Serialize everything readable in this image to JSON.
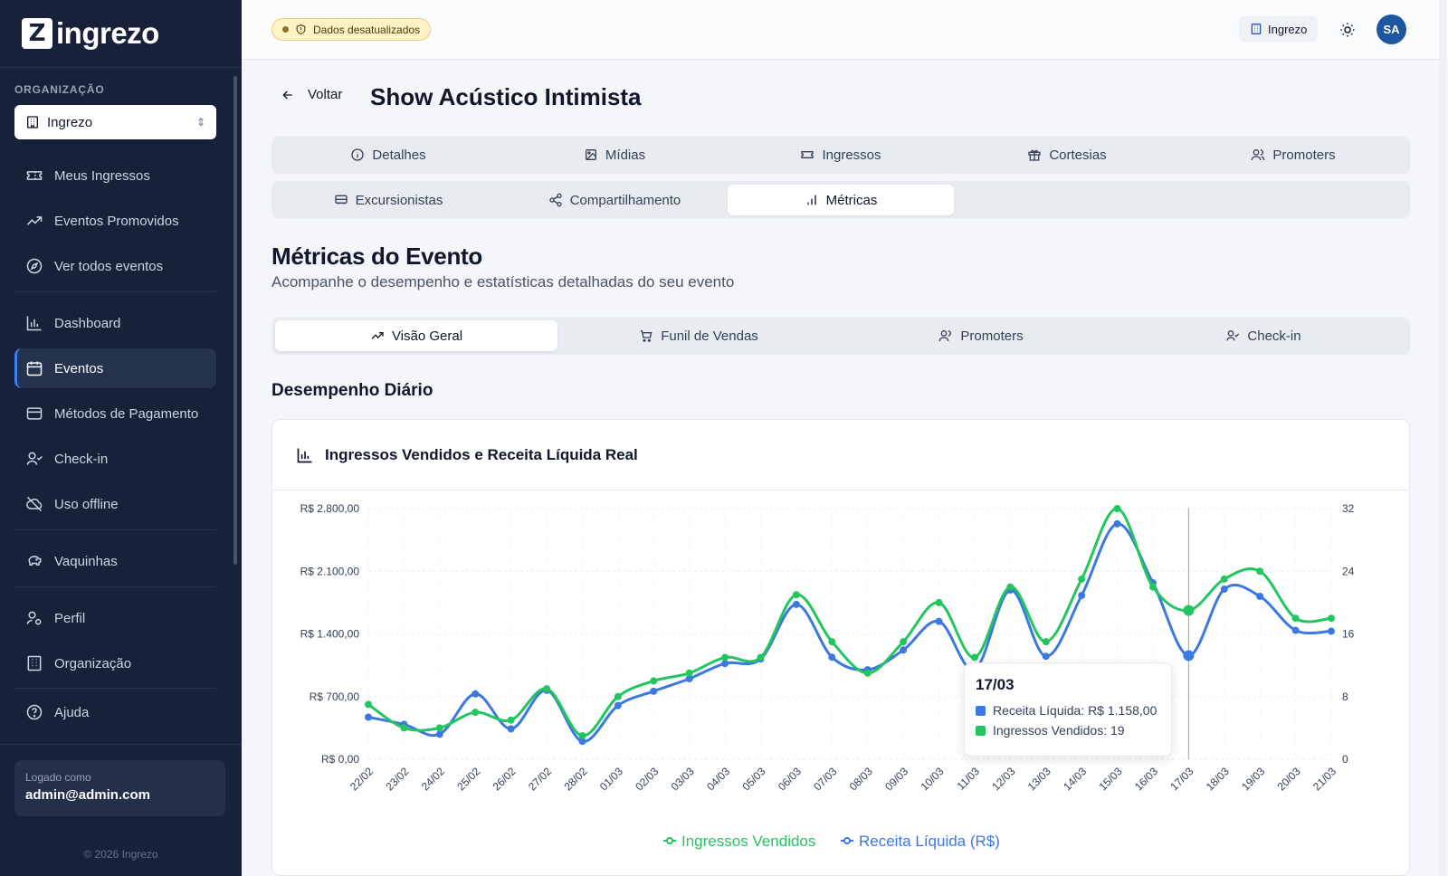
{
  "sidebar": {
    "logo_text": "ingrezo",
    "org_label": "ORGANIZAÇÃO",
    "org_value": "Ingrezo",
    "items": [
      {
        "label": "Meus Ingressos",
        "icon": "ticket-icon"
      },
      {
        "label": "Eventos Promovidos",
        "icon": "trending-up-icon"
      },
      {
        "label": "Ver todos eventos",
        "icon": "compass-icon"
      },
      {
        "label": "Dashboard",
        "icon": "bar-chart-icon"
      },
      {
        "label": "Eventos",
        "icon": "calendar-icon",
        "active": true
      },
      {
        "label": "Métodos de Pagamento",
        "icon": "credit-card-icon"
      },
      {
        "label": "Check-in",
        "icon": "user-check-icon"
      },
      {
        "label": "Uso offline",
        "icon": "cloud-off-icon"
      },
      {
        "label": "Vaquinhas",
        "icon": "piggy-bank-icon"
      },
      {
        "label": "Perfil",
        "icon": "user-cog-icon"
      },
      {
        "label": "Organização",
        "icon": "building-icon"
      },
      {
        "label": "Ajuda",
        "icon": "help-circle-icon"
      }
    ],
    "logged_label": "Logado como",
    "logged_email": "admin@admin.com",
    "copyright": "© 2026 Ingrezo"
  },
  "header": {
    "status_badge": "Dados desatualizados",
    "org_button": "Ingrezo",
    "avatar_initials": "SA"
  },
  "page": {
    "back_label": "Voltar",
    "title": "Show Acústico Intimista"
  },
  "event_tabs": [
    {
      "label": "Detalhes",
      "icon": "info-icon"
    },
    {
      "label": "Mídias",
      "icon": "image-icon"
    },
    {
      "label": "Ingressos",
      "icon": "ticket-icon"
    },
    {
      "label": "Cortesias",
      "icon": "gift-icon"
    },
    {
      "label": "Promoters",
      "icon": "users-icon"
    },
    {
      "label": "Excursionistas",
      "icon": "bus-icon"
    },
    {
      "label": "Compartilhamento",
      "icon": "share-icon"
    },
    {
      "label": "Métricas",
      "icon": "bar-chart-icon",
      "active": true
    }
  ],
  "metrics": {
    "title": "Métricas do Evento",
    "subtitle": "Acompanhe o desempenho e estatísticas detalhadas do seu evento",
    "sub_tabs": [
      {
        "label": "Visão Geral",
        "icon": "trending-up-icon",
        "active": true
      },
      {
        "label": "Funil de Vendas",
        "icon": "cart-icon"
      },
      {
        "label": "Promoters",
        "icon": "users-icon"
      },
      {
        "label": "Check-in",
        "icon": "user-check-icon"
      }
    ],
    "daily_title": "Desempenho Diário",
    "card_title": "Ingressos Vendidos e Receita Líquida Real"
  },
  "chart_data": {
    "type": "line",
    "title": "Ingressos Vendidos e Receita Líquida Real",
    "categories": [
      "22/02",
      "23/02",
      "24/02",
      "25/02",
      "26/02",
      "27/02",
      "28/02",
      "01/03",
      "02/03",
      "03/03",
      "04/03",
      "05/03",
      "06/03",
      "07/03",
      "08/03",
      "09/03",
      "10/03",
      "11/03",
      "12/03",
      "13/03",
      "14/03",
      "15/03",
      "16/03",
      "17/03",
      "18/03",
      "19/03",
      "20/03",
      "21/03"
    ],
    "y_left": {
      "ticks": [
        "R$ 0,00",
        "R$ 700,00",
        "R$ 1.400,00",
        "R$ 2.100,00",
        "R$ 2.800,00"
      ],
      "range": [
        0,
        2800
      ]
    },
    "y_right": {
      "ticks": [
        "0",
        "8",
        "16",
        "24",
        "32"
      ],
      "range": [
        0,
        32
      ]
    },
    "series": [
      {
        "name": "Receita Líquida (R$)",
        "axis": "left",
        "color": "#3b78e0",
        "values": [
          470,
          390,
          280,
          730,
          340,
          770,
          200,
          600,
          760,
          900,
          1070,
          1120,
          1730,
          1140,
          1000,
          1220,
          1540,
          1000,
          1890,
          1150,
          1830,
          2630,
          1970,
          1158,
          1900,
          1820,
          1440,
          1430
        ]
      },
      {
        "name": "Ingressos Vendidos",
        "axis": "right",
        "color": "#22c55e",
        "values": [
          7,
          4,
          4,
          6,
          5,
          9,
          3,
          8,
          10,
          11,
          13,
          13,
          21,
          15,
          11,
          15,
          20,
          13,
          22,
          15,
          23,
          32,
          22,
          19,
          23,
          24,
          18,
          18
        ]
      }
    ],
    "grid": true,
    "legend_position": "bottom-center",
    "tooltip": {
      "date": "17/03",
      "rows": [
        {
          "label": "Receita Líquida: R$ 1.158,00",
          "color": "#3b78e0"
        },
        {
          "label": "Ingressos Vendidos: 19",
          "color": "#22c55e"
        }
      ]
    }
  }
}
